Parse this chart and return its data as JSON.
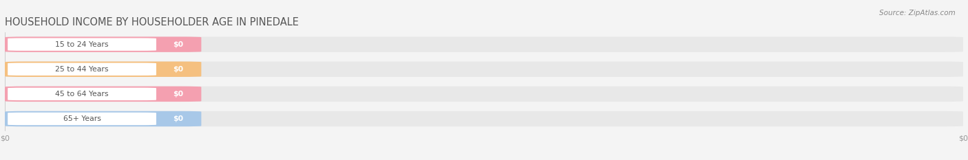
{
  "title": "HOUSEHOLD INCOME BY HOUSEHOLDER AGE IN PINEDALE",
  "source": "Source: ZipAtlas.com",
  "categories": [
    "15 to 24 Years",
    "25 to 44 Years",
    "45 to 64 Years",
    "65+ Years"
  ],
  "values": [
    0,
    0,
    0,
    0
  ],
  "bar_colors": [
    "#f4a0b0",
    "#f5c080",
    "#f4a0b0",
    "#a8c8e8"
  ],
  "background_color": "#f4f4f4",
  "bar_bg_color": "#e8e8e8",
  "white_pill_color": "#ffffff",
  "tick_label_color": "#999999",
  "title_color": "#555555",
  "category_label_color": "#555555",
  "value_label_color": "#ffffff",
  "source_color": "#888888",
  "figsize": [
    14.06,
    2.33
  ],
  "dpi": 100,
  "bar_height": 0.62,
  "n_bars": 4
}
